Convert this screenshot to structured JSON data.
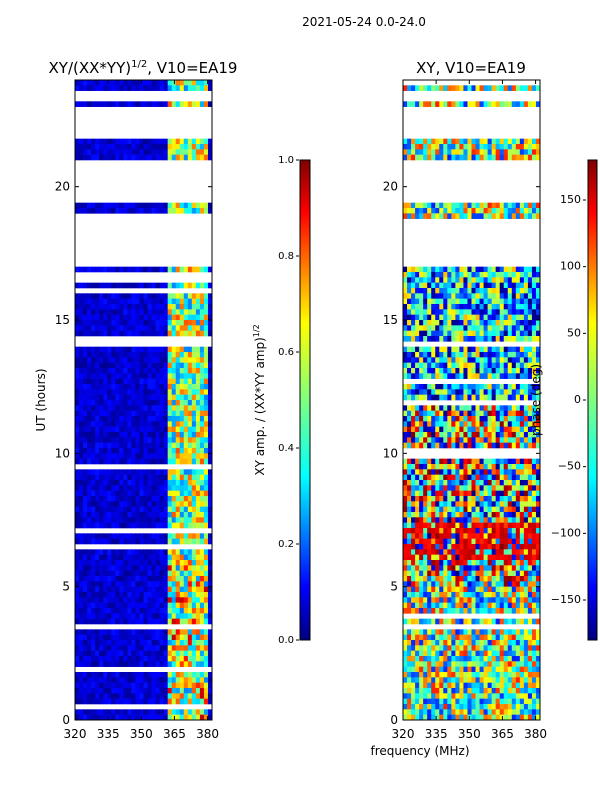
{
  "suptitle": "2021-05-24 0.0-24.0",
  "shared_xlabel": "frequency (MHz)",
  "chart_data": [
    {
      "type": "heatmap",
      "title": "XY/(XX*YY)",
      "title_exp": "1/2",
      "title_tail": ", V10=EA19",
      "xlabel": "",
      "ylabel": "UT (hours)",
      "xlim": [
        320,
        382
      ],
      "ylim": [
        0,
        24
      ],
      "xticks": [
        320,
        335,
        350,
        365,
        380
      ],
      "yticks": [
        0,
        5,
        10,
        15,
        20
      ],
      "colorbar": {
        "label": "XY amp. / (XX*YY amp)",
        "label_exp": "1/2",
        "range": [
          0.0,
          1.0
        ],
        "ticks": [
          "0.0",
          "0.2",
          "0.4",
          "0.6",
          "0.8",
          "1.0"
        ],
        "tick_values": [
          0.0,
          0.2,
          0.4,
          0.6,
          0.8,
          1.0
        ],
        "colormap": "jet"
      },
      "flagged_bands": [
        [
          17.0,
          18.7
        ],
        [
          19.45,
          21.0
        ],
        [
          21.8,
          23.05
        ],
        [
          23.3,
          23.6
        ]
      ]
    },
    {
      "type": "heatmap",
      "title": "XY, V10=EA19",
      "xlabel": "frequency (MHz)",
      "ylabel": "",
      "xlim": [
        320,
        382
      ],
      "ylim": [
        0,
        24
      ],
      "xticks": [
        320,
        335,
        350,
        365,
        380
      ],
      "yticks": [
        0,
        5,
        10,
        15,
        20
      ],
      "colorbar": {
        "label": "phase (deg)",
        "range": [
          -180,
          180
        ],
        "ticks": [
          "150",
          "100",
          "50",
          "0",
          "−50",
          "−100",
          "−150"
        ],
        "tick_values": [
          150,
          100,
          50,
          0,
          -50,
          -100,
          -150
        ],
        "colormap": "jet"
      },
      "flagged_bands": [
        [
          17.0,
          18.7
        ],
        [
          19.45,
          21.0
        ],
        [
          21.8,
          23.05
        ],
        [
          23.3,
          23.6
        ]
      ]
    }
  ]
}
